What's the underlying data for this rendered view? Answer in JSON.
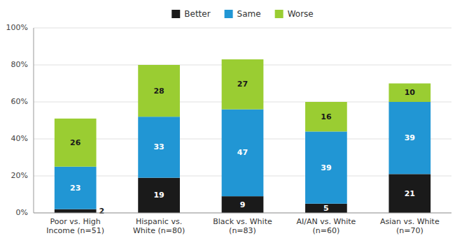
{
  "chart_data": {
    "type": "bar",
    "stacked": true,
    "categories": [
      "Poor vs. High\nIncome (n=51)",
      "Hispanic vs.\nWhite (n=80)",
      "Black vs. White\n(n=83)",
      "AI/AN vs. White\n(n=60)",
      "Asian vs. White\n(n=70)"
    ],
    "series": [
      {
        "name": "Better",
        "color": "#1a1a1a",
        "values": [
          2,
          19,
          9,
          5,
          21
        ]
      },
      {
        "name": "Same",
        "color": "#2196d4",
        "values": [
          23,
          33,
          47,
          39,
          39
        ]
      },
      {
        "name": "Worse",
        "color": "#9acd32",
        "values": [
          26,
          28,
          27,
          16,
          10
        ]
      }
    ],
    "ylim": [
      0,
      100
    ],
    "yticks": [
      {
        "value": 0,
        "label": "0%"
      },
      {
        "value": 20,
        "label": "20%"
      },
      {
        "value": 40,
        "label": "40%"
      },
      {
        "value": 60,
        "label": "60%"
      },
      {
        "value": 80,
        "label": "80%"
      },
      {
        "value": 100,
        "label": "100%"
      }
    ],
    "grid": true,
    "legend": "top",
    "data_labels": true
  }
}
